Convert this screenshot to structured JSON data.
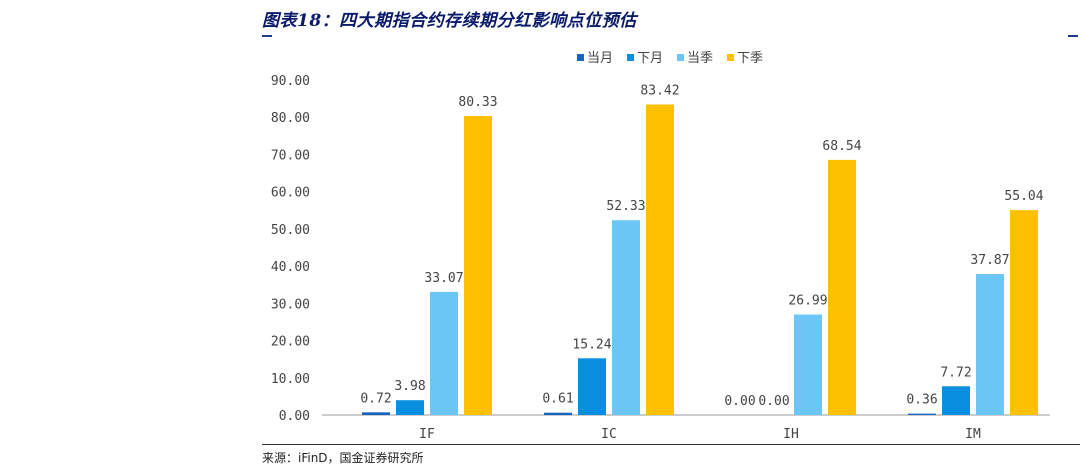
{
  "header": {
    "title": "图表18：四大期指合约存续期分红影响点位预估"
  },
  "footer": {
    "source": "来源：iFinD，国金证券研究所"
  },
  "chart_data": {
    "type": "bar",
    "title": "",
    "xlabel": "",
    "ylabel": "",
    "categories": [
      "IF",
      "IC",
      "IH",
      "IM"
    ],
    "series": [
      {
        "name": "当月",
        "color": "#1565c0",
        "values": [
          0.72,
          0.61,
          0.0,
          0.36
        ],
        "labels": [
          "0.72",
          "0.61",
          "0.00",
          "0.36"
        ]
      },
      {
        "name": "下月",
        "color": "#0a8fe0",
        "values": [
          3.98,
          15.24,
          0.0,
          7.72
        ],
        "labels": [
          "3.98",
          "15.24",
          "0.00",
          "7.72"
        ]
      },
      {
        "name": "当季",
        "color": "#6cc6f5",
        "values": [
          33.07,
          52.33,
          26.99,
          37.87
        ],
        "labels": [
          "33.07",
          "52.33",
          "26.99",
          "37.87"
        ]
      },
      {
        "name": "下季",
        "color": "#ffc000",
        "values": [
          80.33,
          83.42,
          68.54,
          55.04
        ],
        "labels": [
          "80.33",
          "83.42",
          "68.54",
          "55.04"
        ]
      }
    ],
    "ylim": [
      0,
      90
    ],
    "yticks": [
      "0.00",
      "10.00",
      "20.00",
      "30.00",
      "40.00",
      "50.00",
      "60.00",
      "70.00",
      "80.00",
      "90.00"
    ],
    "grid": false,
    "legend_position": "top-center"
  }
}
